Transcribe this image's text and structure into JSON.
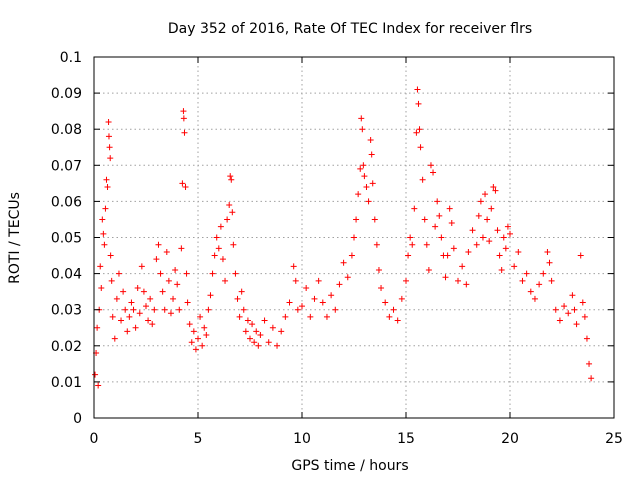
{
  "chart_data": {
    "type": "scatter",
    "title": "Day 352 of 2016, Rate Of TEC Index for receiver flrs",
    "xlabel": "GPS time / hours",
    "ylabel": "ROTI / TECUs",
    "xlim": [
      0,
      25
    ],
    "ylim": [
      0,
      0.1
    ],
    "x_ticks": [
      0,
      5,
      10,
      15,
      20,
      25
    ],
    "x_tick_labels": [
      "0",
      "5",
      "10",
      "15",
      "20",
      "25"
    ],
    "y_ticks": [
      0,
      0.01,
      0.02,
      0.03,
      0.04,
      0.05,
      0.06,
      0.07,
      0.08,
      0.09,
      0.1
    ],
    "y_tick_labels": [
      "0",
      "0.01",
      "0.02",
      "0.03",
      "0.04",
      "0.05",
      "0.06",
      "0.07",
      "0.08",
      "0.09",
      "0.1"
    ],
    "grid": true,
    "marker": "+",
    "marker_color": "#ff0000",
    "series": [
      {
        "points": [
          [
            0.05,
            0.012
          ],
          [
            0.1,
            0.018
          ],
          [
            0.15,
            0.025
          ],
          [
            0.2,
            0.009
          ],
          [
            0.25,
            0.03
          ],
          [
            0.3,
            0.042
          ],
          [
            0.35,
            0.036
          ],
          [
            0.4,
            0.055
          ],
          [
            0.45,
            0.051
          ],
          [
            0.5,
            0.048
          ],
          [
            0.55,
            0.058
          ],
          [
            0.6,
            0.066
          ],
          [
            0.65,
            0.064
          ],
          [
            0.7,
            0.082
          ],
          [
            0.72,
            0.078
          ],
          [
            0.75,
            0.075
          ],
          [
            0.78,
            0.072
          ],
          [
            0.8,
            0.045
          ],
          [
            0.85,
            0.038
          ],
          [
            0.9,
            0.028
          ],
          [
            1.0,
            0.022
          ],
          [
            1.1,
            0.033
          ],
          [
            1.2,
            0.04
          ],
          [
            1.3,
            0.027
          ],
          [
            1.4,
            0.035
          ],
          [
            1.5,
            0.03
          ],
          [
            1.6,
            0.024
          ],
          [
            1.7,
            0.028
          ],
          [
            1.8,
            0.032
          ],
          [
            1.9,
            0.03
          ],
          [
            2.0,
            0.025
          ],
          [
            2.1,
            0.036
          ],
          [
            2.2,
            0.029
          ],
          [
            2.3,
            0.042
          ],
          [
            2.4,
            0.035
          ],
          [
            2.5,
            0.031
          ],
          [
            2.6,
            0.027
          ],
          [
            2.7,
            0.033
          ],
          [
            2.8,
            0.026
          ],
          [
            2.9,
            0.03
          ],
          [
            3.0,
            0.044
          ],
          [
            3.1,
            0.048
          ],
          [
            3.2,
            0.04
          ],
          [
            3.3,
            0.035
          ],
          [
            3.4,
            0.03
          ],
          [
            3.5,
            0.046
          ],
          [
            3.6,
            0.038
          ],
          [
            3.7,
            0.029
          ],
          [
            3.8,
            0.033
          ],
          [
            3.9,
            0.041
          ],
          [
            4.0,
            0.037
          ],
          [
            4.1,
            0.03
          ],
          [
            4.2,
            0.047
          ],
          [
            4.25,
            0.065
          ],
          [
            4.3,
            0.085
          ],
          [
            4.32,
            0.083
          ],
          [
            4.35,
            0.079
          ],
          [
            4.4,
            0.064
          ],
          [
            4.45,
            0.04
          ],
          [
            4.5,
            0.032
          ],
          [
            4.6,
            0.026
          ],
          [
            4.7,
            0.021
          ],
          [
            4.8,
            0.024
          ],
          [
            4.9,
            0.019
          ],
          [
            5.0,
            0.022
          ],
          [
            5.1,
            0.028
          ],
          [
            5.2,
            0.02
          ],
          [
            5.3,
            0.025
          ],
          [
            5.4,
            0.023
          ],
          [
            5.5,
            0.03
          ],
          [
            5.6,
            0.034
          ],
          [
            5.7,
            0.04
          ],
          [
            5.8,
            0.045
          ],
          [
            5.9,
            0.05
          ],
          [
            6.0,
            0.047
          ],
          [
            6.1,
            0.053
          ],
          [
            6.2,
            0.044
          ],
          [
            6.3,
            0.038
          ],
          [
            6.4,
            0.055
          ],
          [
            6.5,
            0.059
          ],
          [
            6.55,
            0.067
          ],
          [
            6.6,
            0.066
          ],
          [
            6.65,
            0.057
          ],
          [
            6.7,
            0.048
          ],
          [
            6.8,
            0.04
          ],
          [
            6.9,
            0.033
          ],
          [
            7.0,
            0.028
          ],
          [
            7.1,
            0.035
          ],
          [
            7.2,
            0.03
          ],
          [
            7.3,
            0.024
          ],
          [
            7.4,
            0.027
          ],
          [
            7.5,
            0.022
          ],
          [
            7.6,
            0.026
          ],
          [
            7.7,
            0.021
          ],
          [
            7.8,
            0.024
          ],
          [
            7.9,
            0.02
          ],
          [
            8.0,
            0.023
          ],
          [
            8.2,
            0.027
          ],
          [
            8.4,
            0.021
          ],
          [
            8.6,
            0.025
          ],
          [
            8.8,
            0.02
          ],
          [
            9.0,
            0.024
          ],
          [
            9.2,
            0.028
          ],
          [
            9.4,
            0.032
          ],
          [
            9.6,
            0.042
          ],
          [
            9.7,
            0.038
          ],
          [
            9.8,
            0.03
          ],
          [
            10.0,
            0.031
          ],
          [
            10.2,
            0.036
          ],
          [
            10.4,
            0.028
          ],
          [
            10.6,
            0.033
          ],
          [
            10.8,
            0.038
          ],
          [
            11.0,
            0.032
          ],
          [
            11.2,
            0.028
          ],
          [
            11.4,
            0.034
          ],
          [
            11.6,
            0.03
          ],
          [
            11.8,
            0.037
          ],
          [
            12.0,
            0.043
          ],
          [
            12.2,
            0.039
          ],
          [
            12.4,
            0.045
          ],
          [
            12.5,
            0.05
          ],
          [
            12.6,
            0.055
          ],
          [
            12.7,
            0.062
          ],
          [
            12.8,
            0.069
          ],
          [
            12.85,
            0.083
          ],
          [
            12.9,
            0.08
          ],
          [
            12.95,
            0.07
          ],
          [
            13.0,
            0.067
          ],
          [
            13.1,
            0.064
          ],
          [
            13.2,
            0.06
          ],
          [
            13.3,
            0.077
          ],
          [
            13.35,
            0.073
          ],
          [
            13.4,
            0.065
          ],
          [
            13.5,
            0.055
          ],
          [
            13.6,
            0.048
          ],
          [
            13.7,
            0.041
          ],
          [
            13.8,
            0.036
          ],
          [
            14.0,
            0.032
          ],
          [
            14.2,
            0.028
          ],
          [
            14.4,
            0.03
          ],
          [
            14.6,
            0.027
          ],
          [
            14.8,
            0.033
          ],
          [
            15.0,
            0.038
          ],
          [
            15.1,
            0.045
          ],
          [
            15.2,
            0.05
          ],
          [
            15.3,
            0.048
          ],
          [
            15.4,
            0.058
          ],
          [
            15.5,
            0.079
          ],
          [
            15.55,
            0.091
          ],
          [
            15.6,
            0.087
          ],
          [
            15.65,
            0.08
          ],
          [
            15.7,
            0.075
          ],
          [
            15.8,
            0.066
          ],
          [
            15.9,
            0.055
          ],
          [
            16.0,
            0.048
          ],
          [
            16.1,
            0.041
          ],
          [
            16.2,
            0.07
          ],
          [
            16.3,
            0.068
          ],
          [
            16.4,
            0.053
          ],
          [
            16.5,
            0.06
          ],
          [
            16.6,
            0.056
          ],
          [
            16.7,
            0.05
          ],
          [
            16.8,
            0.045
          ],
          [
            16.9,
            0.039
          ],
          [
            17.0,
            0.045
          ],
          [
            17.1,
            0.058
          ],
          [
            17.2,
            0.054
          ],
          [
            17.3,
            0.047
          ],
          [
            17.5,
            0.038
          ],
          [
            17.7,
            0.042
          ],
          [
            17.9,
            0.037
          ],
          [
            18.0,
            0.046
          ],
          [
            18.2,
            0.052
          ],
          [
            18.4,
            0.048
          ],
          [
            18.5,
            0.056
          ],
          [
            18.6,
            0.06
          ],
          [
            18.7,
            0.05
          ],
          [
            18.8,
            0.062
          ],
          [
            18.9,
            0.055
          ],
          [
            19.0,
            0.049
          ],
          [
            19.1,
            0.058
          ],
          [
            19.2,
            0.064
          ],
          [
            19.3,
            0.063
          ],
          [
            19.4,
            0.052
          ],
          [
            19.5,
            0.045
          ],
          [
            19.6,
            0.041
          ],
          [
            19.7,
            0.05
          ],
          [
            19.8,
            0.047
          ],
          [
            19.9,
            0.053
          ],
          [
            20.0,
            0.051
          ],
          [
            20.2,
            0.042
          ],
          [
            20.4,
            0.046
          ],
          [
            20.6,
            0.038
          ],
          [
            20.8,
            0.04
          ],
          [
            21.0,
            0.035
          ],
          [
            21.2,
            0.033
          ],
          [
            21.4,
            0.037
          ],
          [
            21.6,
            0.04
          ],
          [
            21.8,
            0.046
          ],
          [
            21.9,
            0.043
          ],
          [
            22.0,
            0.038
          ],
          [
            22.2,
            0.03
          ],
          [
            22.4,
            0.027
          ],
          [
            22.6,
            0.031
          ],
          [
            22.8,
            0.029
          ],
          [
            23.0,
            0.034
          ],
          [
            23.1,
            0.03
          ],
          [
            23.2,
            0.026
          ],
          [
            23.4,
            0.045
          ],
          [
            23.5,
            0.032
          ],
          [
            23.6,
            0.028
          ],
          [
            23.7,
            0.022
          ],
          [
            23.8,
            0.015
          ],
          [
            23.9,
            0.011
          ]
        ]
      }
    ]
  }
}
